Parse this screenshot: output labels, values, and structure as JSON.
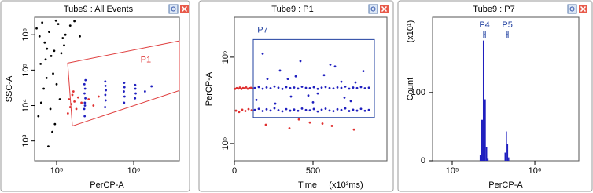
{
  "chart_data": [
    {
      "type": "scatter",
      "title": "Tube9 : All Events",
      "x_label": "PerCP-A",
      "y_label": "SSC-A",
      "xscale": "log",
      "yscale": "log",
      "xlim": [
        51800,
        3900000
      ],
      "ylim": [
        275,
        3100000
      ],
      "xticks": [
        {
          "value": 100000,
          "label": "10⁵"
        },
        {
          "value": 1000000,
          "label": "10⁶"
        }
      ],
      "yticks": [
        {
          "value": 1000,
          "label": "10³"
        },
        {
          "value": 10000,
          "label": "10⁴"
        },
        {
          "value": 100000,
          "label": "10⁵"
        },
        {
          "value": 1000000,
          "label": "10⁶"
        }
      ],
      "series": [
        {
          "color": "#000000",
          "x": [
            55000,
            60000,
            65000,
            70000,
            75000,
            80000,
            85000,
            90000,
            95000,
            100000,
            110000,
            120000,
            58000,
            63000,
            68000,
            72000,
            78000,
            88000,
            98000,
            115000,
            130000,
            150000,
            170000,
            200000,
            62000,
            74000,
            83000,
            93000,
            105000,
            125000
          ],
          "values": [
            1500000,
            900000,
            2200000,
            600000,
            400000,
            1200000,
            250000,
            80000,
            3000,
            40000,
            15000,
            800000,
            5000,
            12000,
            30000,
            200000,
            700,
            1800,
            2500000,
            300000,
            1000000,
            1800000,
            2400000,
            900000,
            150000,
            60000,
            8000,
            350000,
            2000000,
            500000
          ]
        },
        {
          "color": "#e03030",
          "x": [
            140000,
            150000,
            145000,
            160000,
            155000,
            170000,
            180000,
            190000,
            165000,
            210000,
            260000,
            300000,
            350000
          ],
          "values": [
            6000,
            9000,
            15000,
            20000,
            11000,
            13000,
            8000,
            17000,
            25000,
            12000,
            15000,
            10000,
            18000
          ]
        },
        {
          "color": "#1f1fbf",
          "x": [
            228000,
            232000,
            236000,
            230000,
            234000,
            229000,
            237000,
            233000,
            231000,
            425000,
            432000,
            428000,
            435000,
            430000,
            427000,
            750000,
            760000,
            745000,
            758000,
            752000,
            1040000,
            1060000,
            1050000,
            1045000,
            1400000,
            1700000
          ],
          "values": [
            8000,
            12000,
            16000,
            22000,
            30000,
            40000,
            52000,
            10000,
            5000,
            9000,
            14000,
            20000,
            27000,
            36000,
            48000,
            12000,
            18000,
            25000,
            33000,
            44000,
            16000,
            22000,
            30000,
            38000,
            25000,
            35000
          ]
        }
      ],
      "gates": [
        {
          "label": "P1",
          "color": "#e04040",
          "x": [
            139000,
            3900000,
            3900000,
            160000
          ],
          "y": [
            158000,
            666000,
            26500,
            2650
          ]
        }
      ]
    },
    {
      "type": "scatter",
      "title": "Tube9 : P1",
      "x_label": "Time",
      "x_unit_label": "(x10³ms)",
      "y_label": "PerCP-A",
      "xscale": "linear",
      "yscale": "log",
      "xlim": [
        0,
        970
      ],
      "ylim": [
        63000,
        2900000
      ],
      "xticks": [
        0,
        500
      ],
      "yticks": [
        {
          "value": 100000,
          "label": "10⁵"
        },
        {
          "value": 1000000,
          "label": "10⁶"
        }
      ],
      "series": [
        {
          "color": "#e03030",
          "x": [
            5,
            15,
            25,
            35,
            45,
            55,
            65,
            75,
            85,
            95,
            105,
            115,
            10,
            30,
            50,
            70,
            90,
            110,
            200,
            350,
            480,
            620,
            760,
            410,
            560
          ],
          "values": [
            430000,
            438000,
            432000,
            445000,
            428000,
            440000,
            436000,
            447000,
            431000,
            439000,
            442000,
            434000,
            240000,
            232000,
            246000,
            238000,
            250000,
            243000,
            165000,
            150000,
            175000,
            160000,
            145000,
            190000,
            170000
          ]
        },
        {
          "color": "#1f1fbf",
          "x": [
            130,
            155,
            180,
            205,
            230,
            255,
            280,
            305,
            330,
            355,
            380,
            405,
            430,
            455,
            480,
            505,
            530,
            555,
            580,
            605,
            630,
            655,
            680,
            705,
            730,
            755,
            780,
            805,
            830,
            855,
            130,
            155,
            180,
            205,
            230,
            255,
            280,
            305,
            330,
            355,
            380,
            405,
            430,
            455,
            480,
            505,
            530,
            555,
            580,
            605,
            630,
            655,
            680,
            705,
            730,
            755,
            780,
            805,
            830,
            855,
            140,
            210,
            290,
            360,
            420,
            500,
            570,
            640,
            700,
            770,
            820,
            180,
            260,
            340,
            470,
            610,
            740,
            390,
            530,
            680
          ],
          "values": [
            440000,
            452000,
            431000,
            447000,
            436000,
            458000,
            443000,
            429000,
            450000,
            438000,
            446000,
            433000,
            455000,
            441000,
            437000,
            449000,
            430000,
            444000,
            452000,
            439000,
            434000,
            447000,
            441000,
            456000,
            432000,
            445000,
            438000,
            451000,
            436000,
            443000,
            245000,
            252000,
            238000,
            249000,
            241000,
            256000,
            243000,
            236000,
            250000,
            240000,
            247000,
            239000,
            254000,
            244000,
            242000,
            251000,
            235000,
            246000,
            253000,
            241000,
            237000,
            249000,
            244000,
            255000,
            238000,
            246000,
            240000,
            252000,
            239000,
            245000,
            320000,
            560000,
            700000,
            350000,
            900000,
            300000,
            620000,
            780000,
            340000,
            510000,
            690000,
            1100000,
            290000,
            560000,
            360000,
            820000,
            310000,
            600000,
            380000,
            520000
          ]
        }
      ],
      "gates": [
        {
          "label": "P7",
          "color": "#2040a0",
          "x": [
            120,
            890,
            890,
            120
          ],
          "y": [
            200000,
            200000,
            1600000,
            1600000
          ]
        }
      ]
    },
    {
      "type": "histogram",
      "title": "Tube9 : P7",
      "x_label": "PerCP-A",
      "y_label": "Count",
      "y_unit_label": "(x10¹)",
      "xscale": "log",
      "yscale": "linear",
      "xlim": [
        57800,
        3410000
      ],
      "ylim": [
        0,
        210
      ],
      "xticks": [
        {
          "value": 100000,
          "label": "10⁵"
        },
        {
          "value": 1000000,
          "label": "10⁶"
        }
      ],
      "yticks": [
        0,
        100
      ],
      "color": "#1f1fbf",
      "bins": [
        215000,
        225000,
        235000,
        245000,
        255000,
        265000,
        275000,
        430000,
        445000,
        460000,
        475000,
        490000
      ],
      "values": [
        8,
        60,
        176,
        90,
        20,
        3,
        0,
        12,
        43,
        25,
        5
      ],
      "gates": [
        {
          "label": "P4",
          "color": "#2040a0",
          "x": [
            240000,
            252000
          ]
        },
        {
          "label": "P5",
          "color": "#2040a0",
          "x": [
            455000,
            475000
          ]
        }
      ]
    }
  ]
}
